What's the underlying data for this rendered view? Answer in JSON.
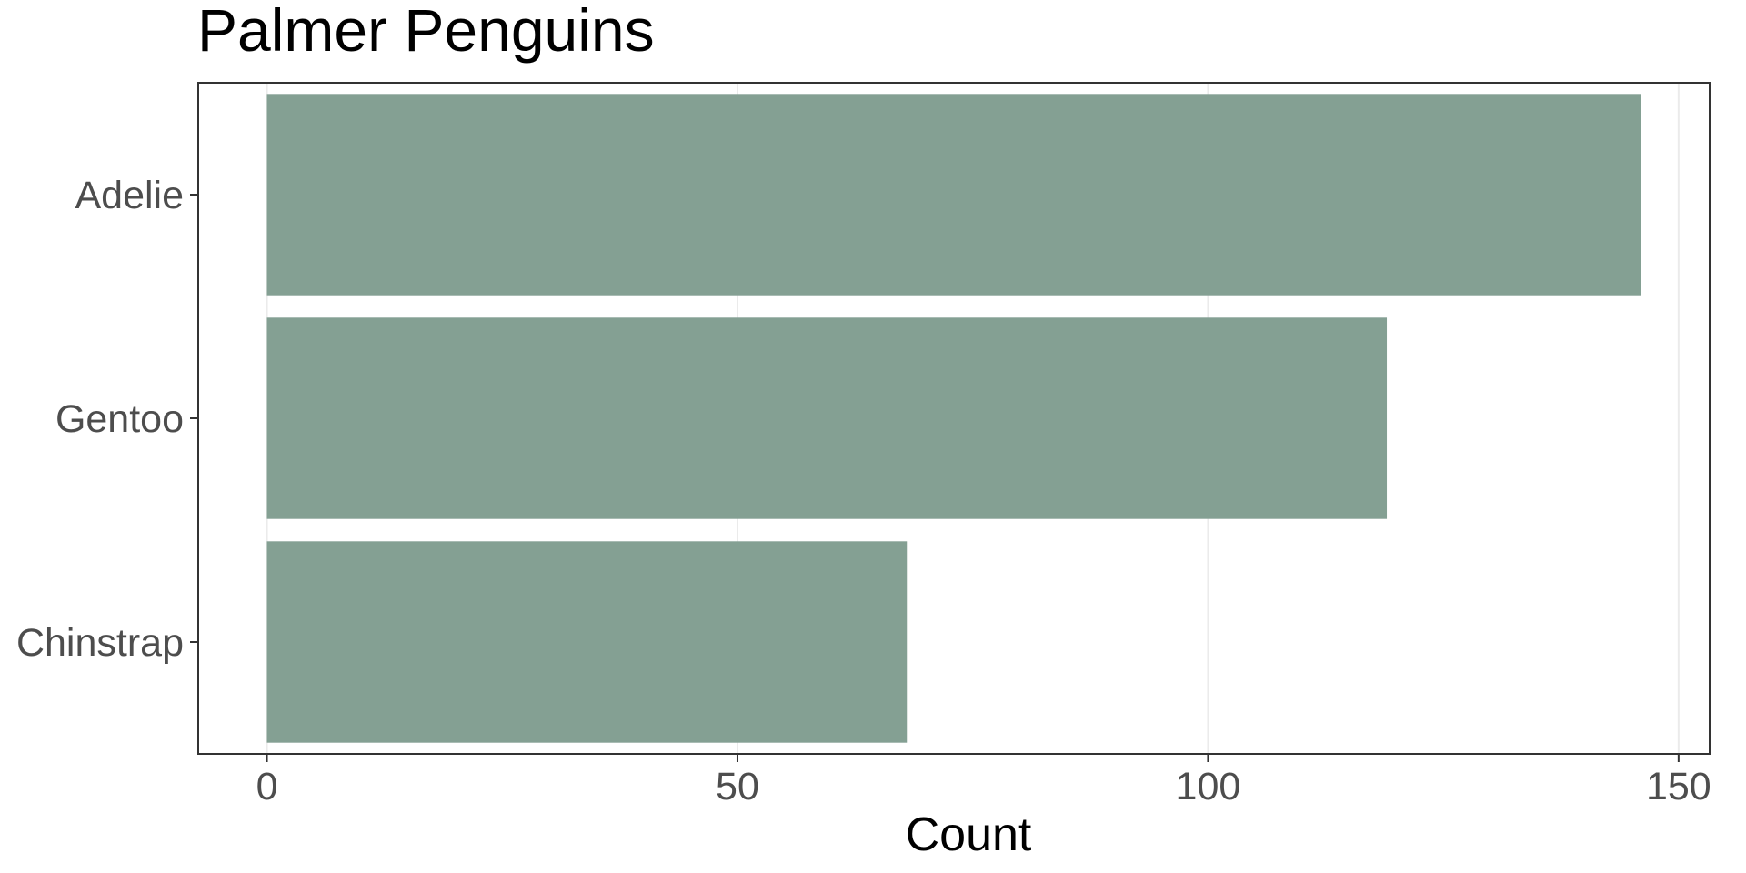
{
  "chart_data": {
    "type": "bar",
    "orientation": "horizontal",
    "title": "Palmer Penguins",
    "xlabel": "Count",
    "ylabel": "",
    "categories": [
      "Adelie",
      "Gentoo",
      "Chinstrap"
    ],
    "values": [
      146,
      119,
      68
    ],
    "xlim": [
      -7.3,
      153.3
    ],
    "xticks": [
      0,
      50,
      100,
      150
    ],
    "xtick_labels": [
      "0",
      "50",
      "100",
      "150"
    ],
    "grid": "vertical major lines",
    "legend": "none",
    "bar_color": "#84a093",
    "grid_color": "#ebebeb",
    "axis_text_color": "#4d4d4d",
    "panel_border_color": "#333333"
  }
}
